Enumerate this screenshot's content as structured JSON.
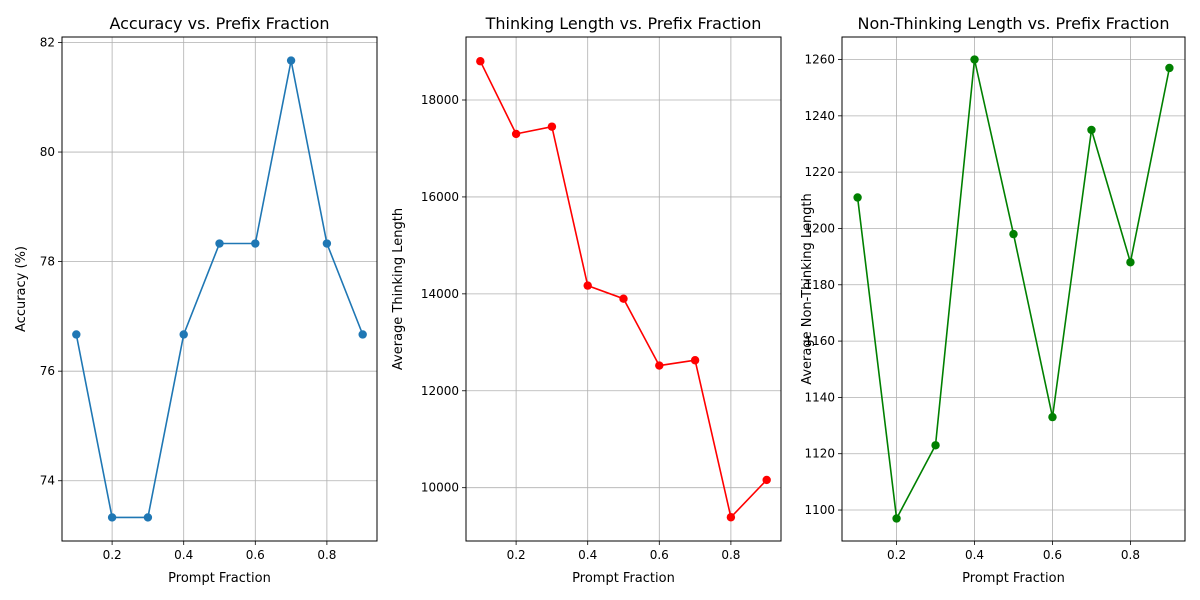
{
  "chart_data": [
    {
      "type": "line",
      "title": "Accuracy vs. Prefix Fraction",
      "xlabel": "Prompt Fraction",
      "ylabel": "Accuracy (%)",
      "x": [
        0.1,
        0.2,
        0.3,
        0.4,
        0.5,
        0.6,
        0.7,
        0.8,
        0.9
      ],
      "series": [
        {
          "values": [
            76.67,
            73.33,
            73.33,
            76.67,
            78.33,
            78.33,
            81.67,
            78.33,
            76.67
          ],
          "color": "#1f77b4"
        }
      ],
      "xlim": [
        0.06,
        0.94
      ],
      "ylim": [
        72.9,
        82.1
      ],
      "xticks": [
        0.2,
        0.4,
        0.6,
        0.8
      ],
      "xtick_labels": [
        "0.2",
        "0.4",
        "0.6",
        "0.8"
      ],
      "yticks": [
        74,
        76,
        78,
        80,
        82
      ],
      "ytick_labels": [
        "74",
        "76",
        "78",
        "80",
        "82"
      ],
      "grid": true,
      "marker": "circle"
    },
    {
      "type": "line",
      "title": "Thinking Length vs. Prefix Fraction",
      "xlabel": "Prompt Fraction",
      "ylabel": "Average Thinking Length",
      "x": [
        0.1,
        0.2,
        0.3,
        0.4,
        0.5,
        0.6,
        0.7,
        0.8,
        0.9
      ],
      "series": [
        {
          "values": [
            18800,
            17300,
            17450,
            14170,
            13900,
            12520,
            12630,
            9390,
            10160
          ],
          "color": "#ff0000"
        }
      ],
      "xlim": [
        0.06,
        0.94
      ],
      "ylim": [
        8900,
        19300
      ],
      "xticks": [
        0.2,
        0.4,
        0.6,
        0.8
      ],
      "xtick_labels": [
        "0.2",
        "0.4",
        "0.6",
        "0.8"
      ],
      "yticks": [
        10000,
        12000,
        14000,
        16000,
        18000
      ],
      "ytick_labels": [
        "10000",
        "12000",
        "14000",
        "16000",
        "18000"
      ],
      "grid": true,
      "marker": "circle"
    },
    {
      "type": "line",
      "title": "Non-Thinking Length vs. Prefix Fraction",
      "xlabel": "Prompt Fraction",
      "ylabel": "Average Non-Thinking Length",
      "x": [
        0.1,
        0.2,
        0.3,
        0.4,
        0.5,
        0.6,
        0.7,
        0.8,
        0.9
      ],
      "series": [
        {
          "values": [
            1211,
            1097,
            1123,
            1260,
            1198,
            1133,
            1235,
            1188,
            1257
          ],
          "color": "#008000"
        }
      ],
      "xlim": [
        0.06,
        0.94
      ],
      "ylim": [
        1089,
        1268
      ],
      "xticks": [
        0.2,
        0.4,
        0.6,
        0.8
      ],
      "xtick_labels": [
        "0.2",
        "0.4",
        "0.6",
        "0.8"
      ],
      "yticks": [
        1100,
        1120,
        1140,
        1160,
        1180,
        1200,
        1220,
        1240,
        1260
      ],
      "ytick_labels": [
        "1100",
        "1120",
        "1140",
        "1160",
        "1180",
        "1200",
        "1220",
        "1240",
        "1260"
      ],
      "grid": true,
      "marker": "circle"
    }
  ]
}
